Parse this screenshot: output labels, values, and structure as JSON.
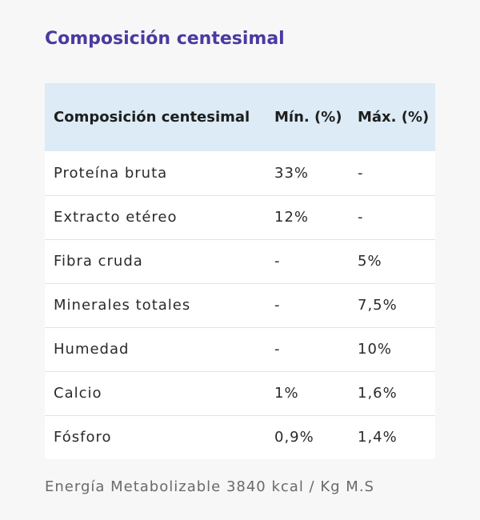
{
  "title": "Composición centesimal",
  "table": {
    "headers": [
      "Composición centesimal",
      "Mín. (%)",
      "Máx. (%)"
    ],
    "rows": [
      [
        "Proteína bruta",
        "33%",
        "-"
      ],
      [
        "Extracto etéreo",
        "12%",
        "-"
      ],
      [
        "Fibra cruda",
        "-",
        "5%"
      ],
      [
        "Minerales totales",
        "-",
        "7,5%"
      ],
      [
        "Humedad",
        "-",
        "10%"
      ],
      [
        "Calcio",
        "1%",
        "1,6%"
      ],
      [
        "Fósforo",
        "0,9%",
        "1,4%"
      ]
    ]
  },
  "footer_note": "Energía Metabolizable 3840 kcal / Kg M.S",
  "colors": {
    "title": "#4a3aa0",
    "header_bg": "#dcebf5",
    "page_bg": "#f7f7f7"
  }
}
